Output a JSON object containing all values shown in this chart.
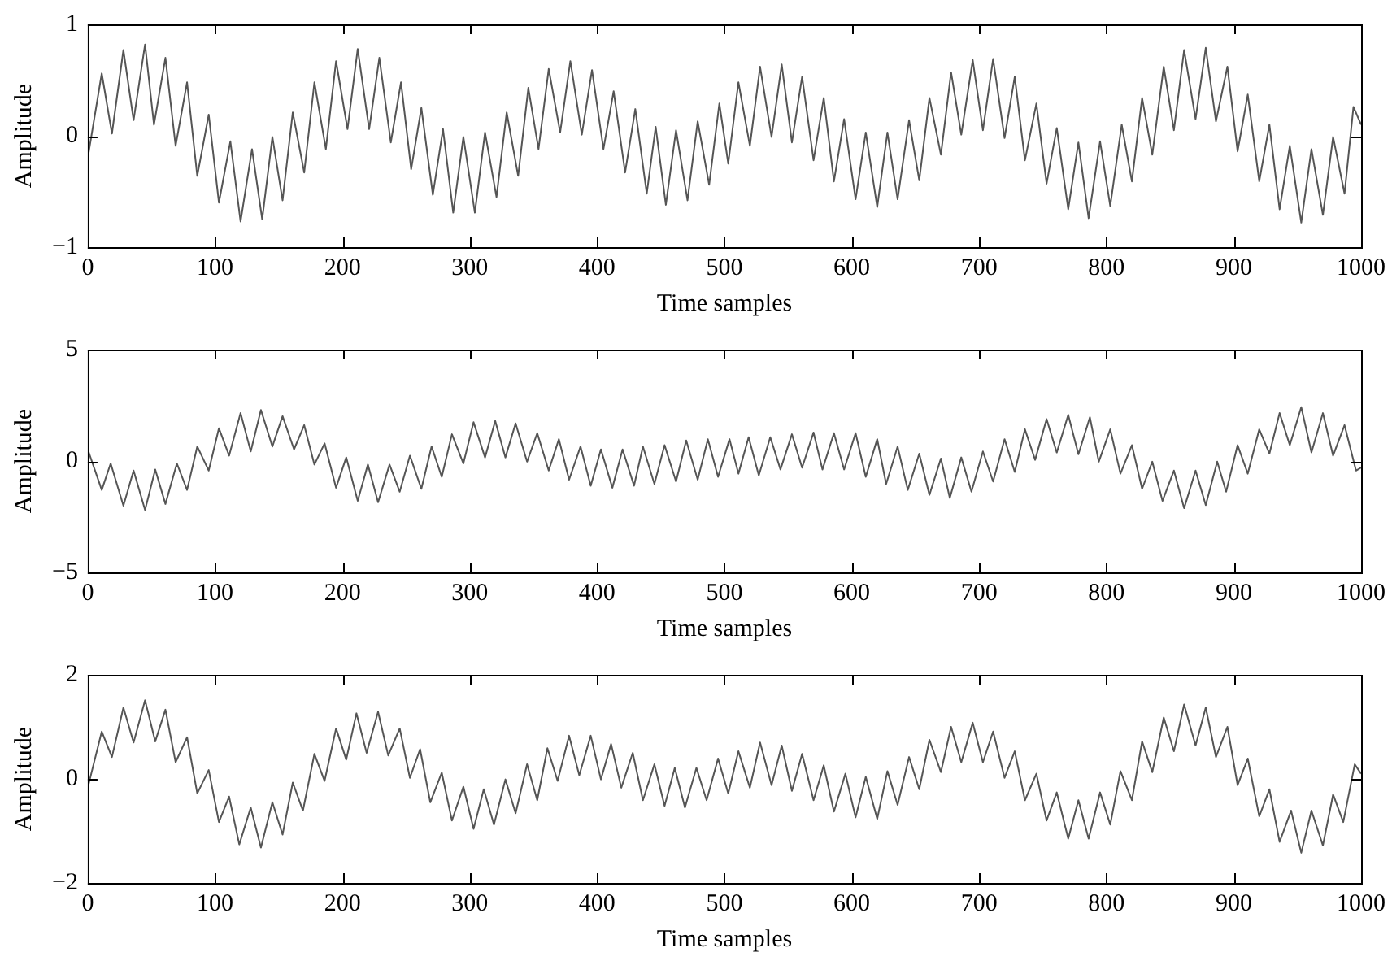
{
  "chart_data": [
    {
      "type": "line",
      "xlabel": "Time samples",
      "ylabel": "Amplitude",
      "xlim": [
        0,
        1000
      ],
      "xticks": [
        0,
        100,
        200,
        300,
        400,
        500,
        600,
        700,
        800,
        900,
        1000
      ],
      "ylim": [
        -1,
        1
      ],
      "yticks": [
        {
          "value": -1,
          "label": "−1"
        },
        0,
        1
      ],
      "marker": "none",
      "x": [
        0,
        11,
        19,
        28,
        36,
        45,
        52,
        61,
        69,
        78,
        86,
        95,
        103,
        112,
        120,
        129,
        137,
        145,
        153,
        161,
        170,
        178,
        187,
        195,
        204,
        212,
        221,
        229,
        238,
        246,
        254,
        262,
        271,
        279,
        287,
        295,
        304,
        312,
        321,
        329,
        338,
        346,
        354,
        362,
        371,
        379,
        388,
        396,
        405,
        413,
        422,
        430,
        439,
        446,
        454,
        462,
        471,
        479,
        488,
        496,
        503,
        511,
        520,
        528,
        537,
        545,
        553,
        561,
        570,
        578,
        586,
        594,
        603,
        611,
        620,
        628,
        636,
        645,
        653,
        661,
        670,
        678,
        686,
        695,
        703,
        711,
        720,
        728,
        736,
        745,
        753,
        761,
        770,
        778,
        786,
        795,
        803,
        812,
        820,
        828,
        836,
        845,
        853,
        861,
        870,
        878,
        886,
        895,
        903,
        911,
        920,
        928,
        936,
        944,
        953,
        961,
        970,
        978,
        987,
        994,
        1000
      ],
      "series": [
        {
          "color": "#555555",
          "values": [
            -0.2,
            0.56,
            0.02,
            0.77,
            0.14,
            0.82,
            0.1,
            0.7,
            -0.09,
            0.48,
            -0.36,
            0.19,
            -0.6,
            -0.05,
            -0.77,
            -0.12,
            -0.75,
            -0.01,
            -0.58,
            0.21,
            -0.33,
            0.48,
            -0.12,
            0.67,
            0.06,
            0.78,
            0.06,
            0.7,
            -0.06,
            0.48,
            -0.3,
            0.25,
            -0.53,
            0.06,
            -0.69,
            -0.01,
            -0.69,
            0.03,
            -0.55,
            0.21,
            -0.36,
            0.43,
            -0.12,
            0.6,
            0.03,
            0.67,
            0.01,
            0.59,
            -0.12,
            0.4,
            -0.33,
            0.24,
            -0.52,
            0.08,
            -0.62,
            0.05,
            -0.58,
            0.13,
            -0.44,
            0.29,
            -0.25,
            0.48,
            -0.09,
            0.62,
            -0.01,
            0.64,
            -0.06,
            0.53,
            -0.22,
            0.34,
            -0.41,
            0.15,
            -0.57,
            0.03,
            -0.64,
            0.03,
            -0.57,
            0.14,
            -0.4,
            0.34,
            -0.17,
            0.57,
            0.01,
            0.68,
            0.05,
            0.69,
            -0.02,
            0.53,
            -0.22,
            0.29,
            -0.43,
            0.07,
            -0.66,
            -0.06,
            -0.74,
            -0.05,
            -0.63,
            0.1,
            -0.41,
            0.34,
            -0.17,
            0.62,
            0.05,
            0.77,
            0.15,
            0.79,
            0.13,
            0.62,
            -0.14,
            0.37,
            -0.41,
            0.1,
            -0.66,
            -0.09,
            -0.78,
            -0.12,
            -0.71,
            -0.01,
            -0.52,
            0.26,
            0.1
          ]
        }
      ]
    },
    {
      "type": "line",
      "xlabel": "Time samples",
      "ylabel": "Amplitude",
      "xlim": [
        0,
        1000
      ],
      "xticks": [
        0,
        100,
        200,
        300,
        400,
        500,
        600,
        700,
        800,
        900,
        1000
      ],
      "ylim": [
        -5,
        5
      ],
      "yticks": [
        {
          "value": -5,
          "label": "−5"
        },
        0,
        5
      ],
      "marker": "none",
      "x": [
        0,
        11,
        18,
        28,
        36,
        45,
        53,
        61,
        70,
        78,
        86,
        95,
        103,
        111,
        120,
        128,
        136,
        145,
        153,
        162,
        170,
        178,
        186,
        195,
        203,
        212,
        220,
        228,
        237,
        245,
        253,
        262,
        270,
        278,
        286,
        295,
        303,
        312,
        320,
        328,
        336,
        345,
        353,
        362,
        370,
        378,
        387,
        395,
        403,
        412,
        420,
        429,
        436,
        445,
        453,
        462,
        470,
        479,
        487,
        495,
        504,
        511,
        519,
        527,
        536,
        544,
        553,
        561,
        570,
        577,
        586,
        594,
        603,
        611,
        620,
        627,
        636,
        644,
        653,
        661,
        670,
        677,
        686,
        694,
        703,
        711,
        720,
        728,
        736,
        744,
        753,
        761,
        770,
        778,
        787,
        794,
        803,
        811,
        820,
        828,
        836,
        844,
        853,
        861,
        870,
        878,
        887,
        894,
        903,
        911,
        920,
        928,
        936,
        944,
        953,
        961,
        970,
        978,
        987,
        996,
        1000
      ],
      "series": [
        {
          "color": "#555555",
          "values": [
            0.52,
            -1.3,
            -0.11,
            -2.01,
            -0.43,
            -2.2,
            -0.38,
            -1.93,
            -0.11,
            -1.3,
            0.65,
            -0.43,
            1.47,
            0.24,
            2.15,
            0.43,
            2.29,
            0.65,
            2.01,
            0.52,
            1.61,
            -0.16,
            0.79,
            -1.2,
            0.16,
            -1.79,
            -0.16,
            -1.85,
            -0.16,
            -1.38,
            0.24,
            -1.25,
            0.65,
            -0.71,
            1.2,
            -0.11,
            1.74,
            0.16,
            1.8,
            0.16,
            1.69,
            -0.03,
            1.25,
            -0.43,
            0.98,
            -0.84,
            0.65,
            -1.11,
            0.52,
            -1.2,
            0.52,
            -1.11,
            0.65,
            -1.03,
            0.71,
            -0.92,
            0.92,
            -0.84,
            0.98,
            -0.71,
            0.98,
            -0.57,
            1.07,
            -0.65,
            1.07,
            -0.38,
            1.2,
            -0.3,
            1.28,
            -0.38,
            1.25,
            -0.38,
            1.25,
            -0.71,
            0.98,
            -1.03,
            0.65,
            -1.3,
            0.33,
            -1.52,
            0.11,
            -1.66,
            0.16,
            -1.38,
            0.43,
            -0.92,
            0.98,
            -0.49,
            1.42,
            0.05,
            1.88,
            0.38,
            2.07,
            0.3,
            1.96,
            -0.03,
            1.42,
            -0.57,
            0.71,
            -1.25,
            -0.03,
            -1.79,
            -0.43,
            -2.12,
            -0.43,
            -1.98,
            -0.03,
            -1.38,
            0.71,
            -0.57,
            1.42,
            0.33,
            2.15,
            0.71,
            2.42,
            0.38,
            2.15,
            0.24,
            1.61,
            -0.43,
            -0.3
          ]
        }
      ]
    },
    {
      "type": "line",
      "xlabel": "Time samples",
      "ylabel": "Amplitude",
      "xlim": [
        0,
        1000
      ],
      "xticks": [
        0,
        100,
        200,
        300,
        400,
        500,
        600,
        700,
        800,
        900,
        1000
      ],
      "ylim": [
        -2,
        2
      ],
      "yticks": [
        {
          "value": -2,
          "label": "−2"
        },
        0,
        2
      ],
      "marker": "none",
      "x": [
        0,
        11,
        19,
        28,
        36,
        45,
        53,
        61,
        69,
        78,
        86,
        95,
        103,
        111,
        119,
        128,
        136,
        145,
        153,
        161,
        169,
        178,
        186,
        195,
        203,
        211,
        219,
        228,
        236,
        245,
        253,
        261,
        269,
        278,
        286,
        295,
        303,
        311,
        319,
        328,
        336,
        345,
        353,
        361,
        369,
        378,
        386,
        395,
        403,
        411,
        419,
        428,
        436,
        445,
        453,
        461,
        469,
        478,
        486,
        495,
        503,
        511,
        520,
        528,
        537,
        545,
        553,
        561,
        570,
        578,
        586,
        595,
        603,
        611,
        620,
        628,
        636,
        645,
        653,
        661,
        670,
        678,
        686,
        695,
        703,
        711,
        720,
        728,
        736,
        745,
        753,
        761,
        770,
        778,
        786,
        795,
        803,
        811,
        820,
        828,
        836,
        845,
        853,
        861,
        870,
        878,
        886,
        895,
        903,
        911,
        920,
        928,
        936,
        945,
        953,
        961,
        970,
        978,
        986,
        995,
        1000
      ],
      "series": [
        {
          "color": "#555555",
          "values": [
            -0.17,
            0.91,
            0.42,
            1.37,
            0.7,
            1.51,
            0.72,
            1.33,
            0.32,
            0.8,
            -0.28,
            0.17,
            -0.83,
            -0.34,
            -1.26,
            -0.55,
            -1.32,
            -0.45,
            -1.07,
            -0.07,
            -0.61,
            0.48,
            -0.04,
            0.97,
            0.37,
            1.26,
            0.5,
            1.29,
            0.45,
            0.97,
            0.02,
            0.57,
            -0.45,
            0.12,
            -0.8,
            -0.15,
            -0.96,
            -0.2,
            -0.88,
            -0.01,
            -0.66,
            0.28,
            -0.41,
            0.59,
            -0.04,
            0.83,
            0.07,
            0.83,
            -0.01,
            0.67,
            -0.17,
            0.5,
            -0.41,
            0.28,
            -0.52,
            0.21,
            -0.55,
            0.21,
            -0.41,
            0.39,
            -0.28,
            0.53,
            -0.17,
            0.7,
            -0.12,
            0.64,
            -0.23,
            0.48,
            -0.41,
            0.26,
            -0.63,
            0.1,
            -0.74,
            0.04,
            -0.77,
            0.15,
            -0.5,
            0.42,
            -0.2,
            0.75,
            0.13,
            1.0,
            0.32,
            1.08,
            0.32,
            0.91,
            0.02,
            0.53,
            -0.41,
            0.1,
            -0.8,
            -0.26,
            -1.15,
            -0.41,
            -1.15,
            -0.26,
            -0.88,
            0.15,
            -0.41,
            0.72,
            0.13,
            1.18,
            0.53,
            1.43,
            0.64,
            1.37,
            0.42,
            1.0,
            -0.12,
            0.39,
            -0.72,
            -0.2,
            -1.21,
            -0.61,
            -1.42,
            -0.61,
            -1.28,
            -0.3,
            -0.83,
            0.28,
            0.1
          ]
        }
      ]
    }
  ]
}
